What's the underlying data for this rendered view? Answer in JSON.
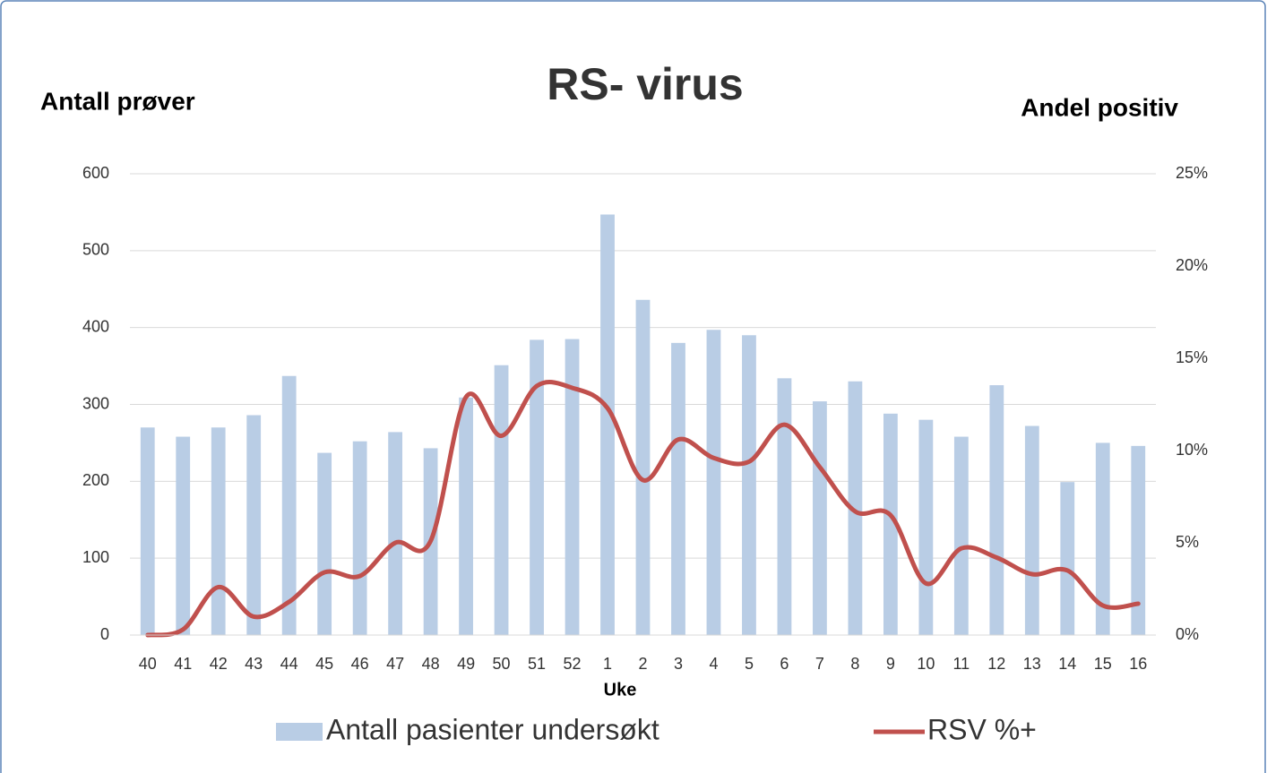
{
  "chart_data": {
    "type": "bar-line",
    "title": "RS- virus",
    "y_label": "Antall prøver",
    "y2_label": "Andel positiv",
    "x_label": "Uke",
    "categories": [
      "40",
      "41",
      "42",
      "43",
      "44",
      "45",
      "46",
      "47",
      "48",
      "49",
      "50",
      "51",
      "52",
      "1",
      "2",
      "3",
      "4",
      "5",
      "6",
      "7",
      "8",
      "9",
      "10",
      "11",
      "12",
      "13",
      "14",
      "15",
      "16"
    ],
    "series": [
      {
        "name": "Antall pasienter undersøkt",
        "type": "bar",
        "color": "#b9cde5",
        "values": [
          270,
          258,
          270,
          286,
          337,
          237,
          252,
          264,
          243,
          309,
          351,
          384,
          385,
          547,
          436,
          380,
          397,
          390,
          334,
          304,
          330,
          288,
          280,
          258,
          325,
          272,
          199,
          250,
          246
        ]
      },
      {
        "name": "RSV %+",
        "type": "line",
        "axis": "y2",
        "color": "#c0504d",
        "values": [
          0,
          0.3,
          2.6,
          1.0,
          1.8,
          3.4,
          3.2,
          5.0,
          5.1,
          12.9,
          10.8,
          13.5,
          13.4,
          12.3,
          8.4,
          10.6,
          9.6,
          9.4,
          11.4,
          9.1,
          6.7,
          6.5,
          2.8,
          4.7,
          4.2,
          3.3,
          3.5,
          1.6,
          1.7
        ]
      }
    ],
    "ylim": [
      0,
      600
    ],
    "yticks": [
      0,
      100,
      200,
      300,
      400,
      500,
      600
    ],
    "y2lim": [
      0,
      25
    ],
    "y2ticks": [
      {
        "value": 0,
        "label": "0%"
      },
      {
        "value": 5,
        "label": "5%"
      },
      {
        "value": 10,
        "label": "10%"
      },
      {
        "value": 15,
        "label": "15%"
      },
      {
        "value": 20,
        "label": "20%"
      },
      {
        "value": 25,
        "label": "25%"
      }
    ],
    "grid": true,
    "legend": "bottom"
  }
}
